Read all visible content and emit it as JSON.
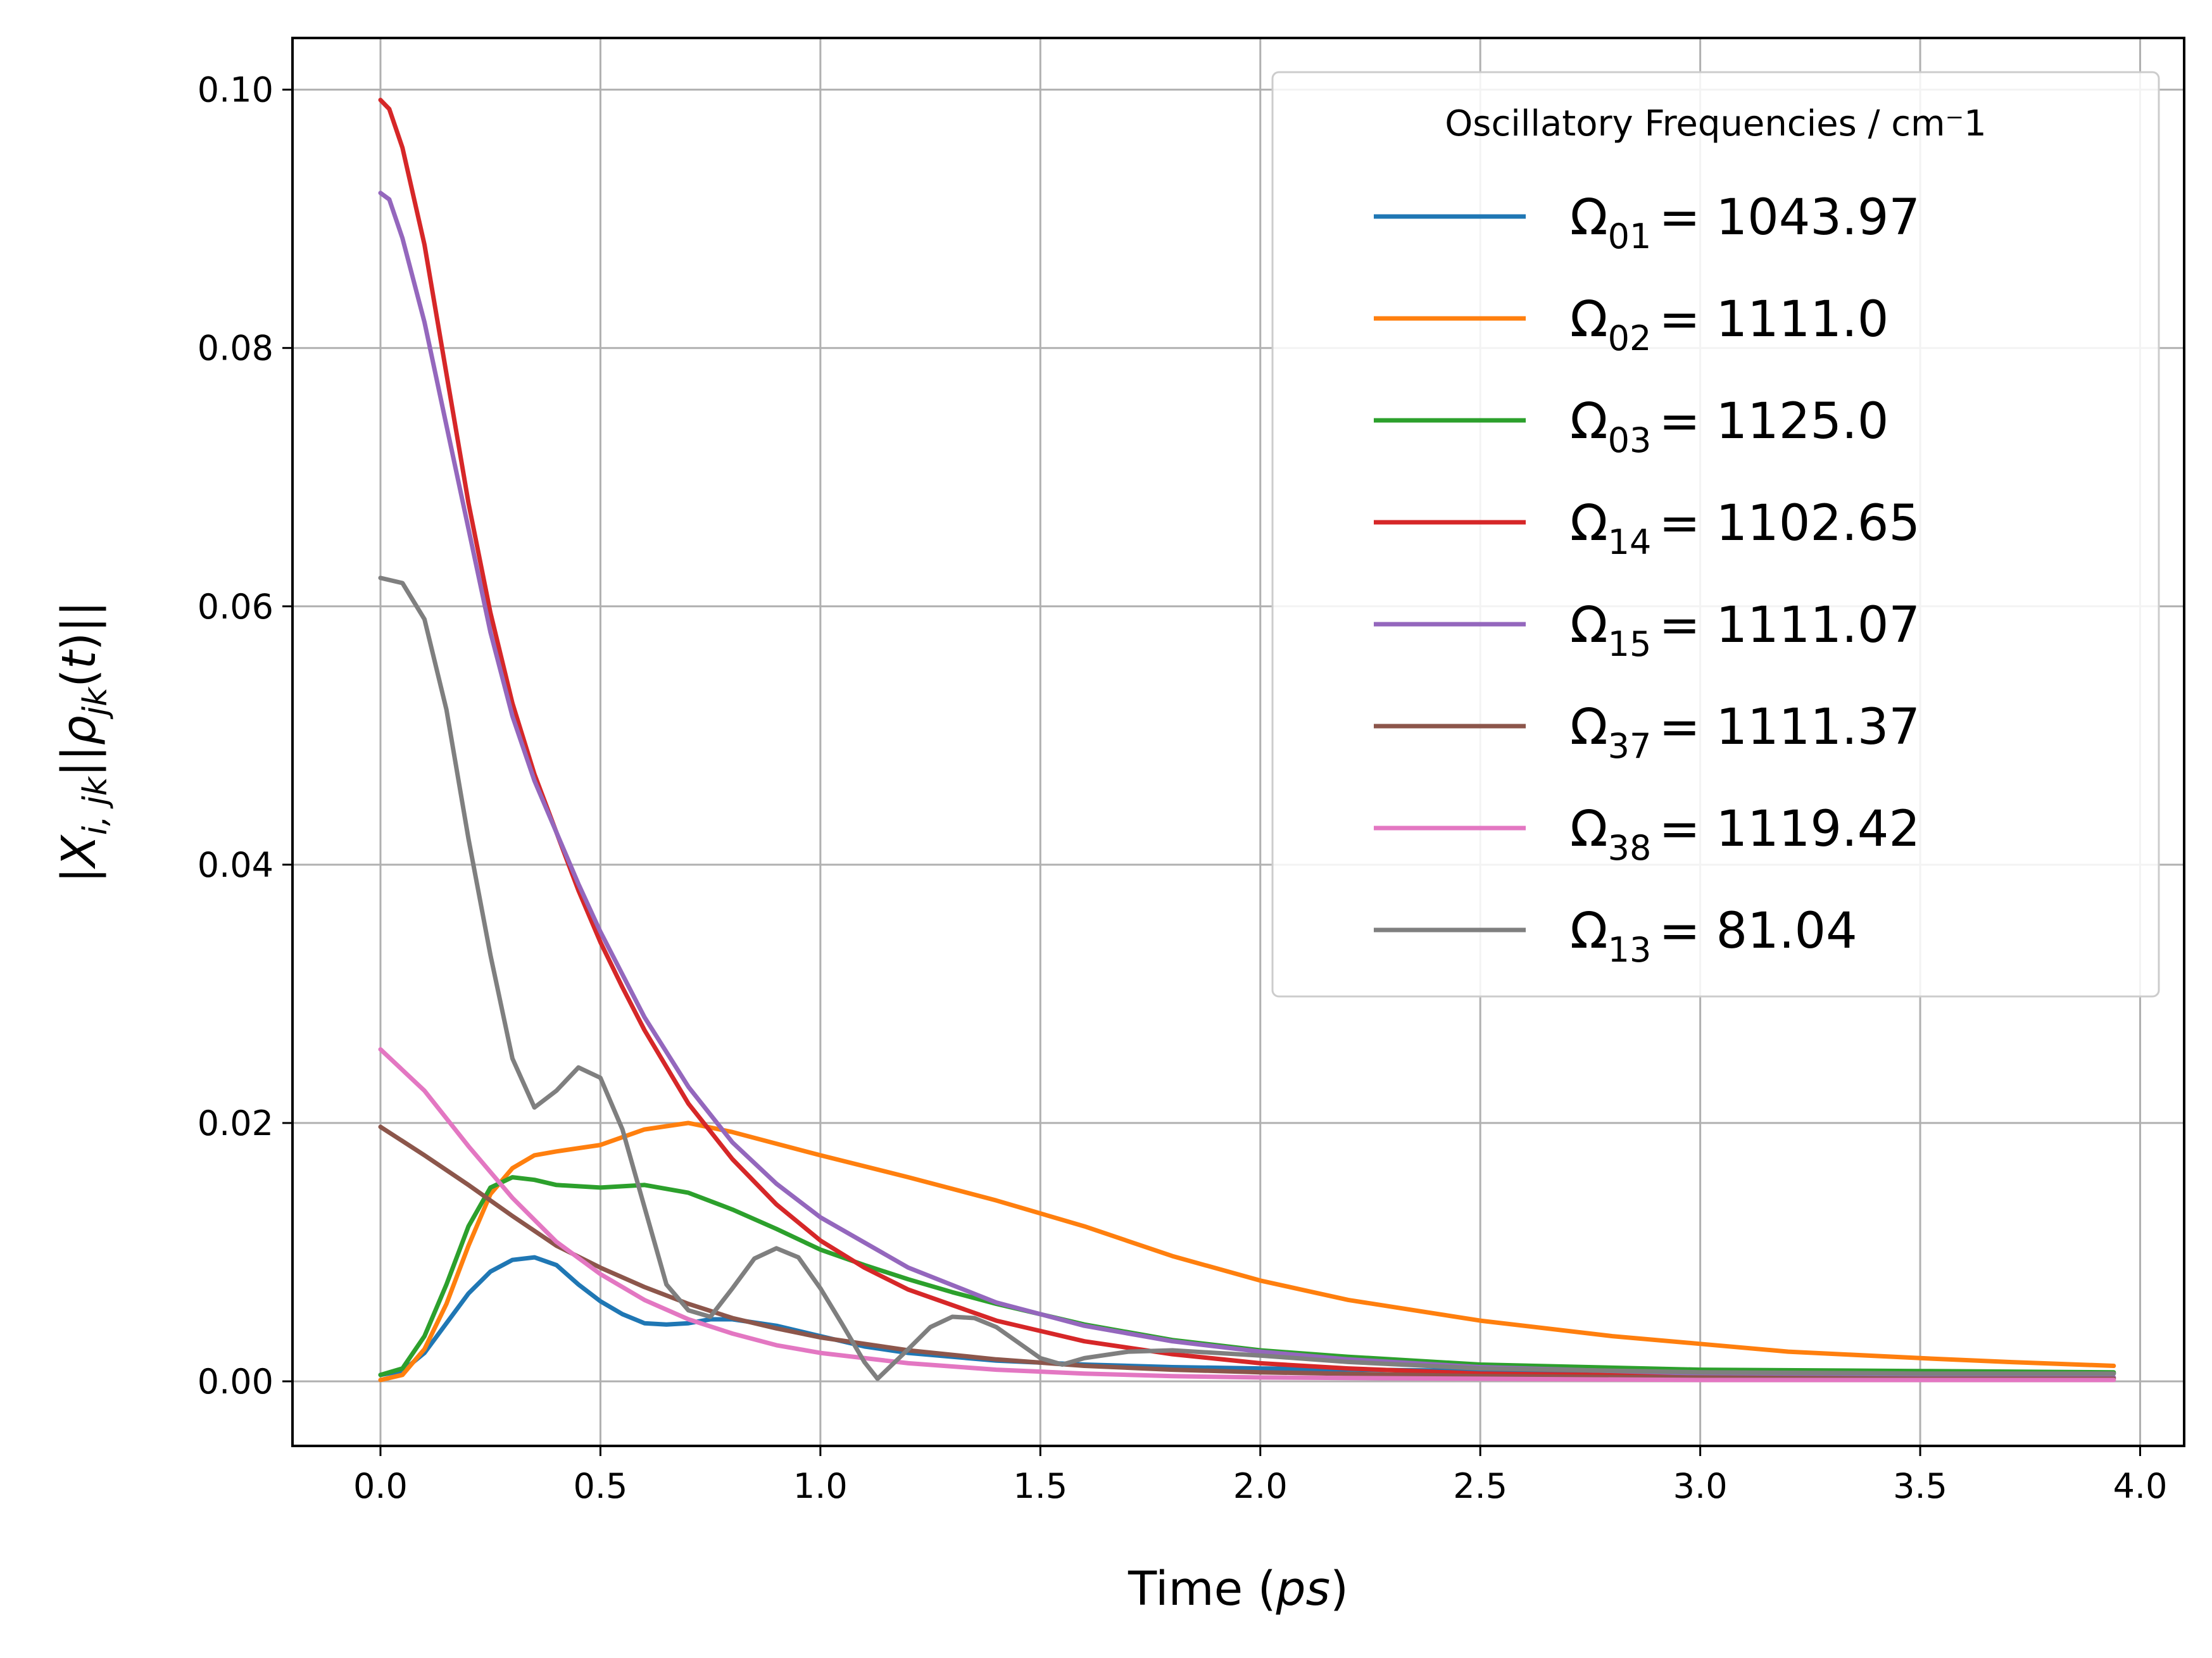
{
  "chart_data": {
    "type": "line",
    "xlabel": "Time (ps)",
    "ylabel": "|X_{i,jk}||ρ_{jk}(t)||",
    "xlim": [
      -0.2,
      4.1
    ],
    "ylim": [
      -0.005,
      0.104
    ],
    "x_ticks": [
      0.0,
      0.5,
      1.0,
      1.5,
      2.0,
      2.5,
      3.0,
      3.5,
      4.0
    ],
    "x_tick_labels": [
      "0.0",
      "0.5",
      "1.0",
      "1.5",
      "2.0",
      "2.5",
      "3.0",
      "3.5",
      "4.0"
    ],
    "y_ticks": [
      0.0,
      0.02,
      0.04,
      0.06,
      0.08,
      0.1
    ],
    "y_tick_labels": [
      "0.00",
      "0.02",
      "0.04",
      "0.06",
      "0.08",
      "0.10"
    ],
    "grid": true,
    "legend": {
      "title": "Oscillatory Frequencies / cm⁻1",
      "position": "upper right"
    },
    "series": [
      {
        "name": "Ω01 = 1043.97",
        "sub": "01",
        "value_text": "= 1043.97",
        "color": "#1f77b4",
        "x": [
          0,
          0.05,
          0.1,
          0.15,
          0.2,
          0.25,
          0.3,
          0.35,
          0.4,
          0.45,
          0.5,
          0.55,
          0.6,
          0.65,
          0.7,
          0.75,
          0.8,
          0.9,
          1.0,
          1.1,
          1.2,
          1.4,
          1.6,
          1.8,
          2.0,
          2.5,
          3.0,
          3.5,
          3.94
        ],
        "y": [
          0.0005,
          0.0008,
          0.0022,
          0.0045,
          0.0068,
          0.0085,
          0.0094,
          0.0096,
          0.009,
          0.0075,
          0.0062,
          0.0052,
          0.0045,
          0.0044,
          0.0045,
          0.0048,
          0.0048,
          0.0043,
          0.0035,
          0.0027,
          0.0022,
          0.0016,
          0.0013,
          0.0011,
          0.001,
          0.0008,
          0.0007,
          0.0007,
          0.0006
        ]
      },
      {
        "name": "Ω02 = 1111.0",
        "sub": "02",
        "value_text": "= 1111.0",
        "color": "#ff7f0e",
        "x": [
          0,
          0.05,
          0.1,
          0.15,
          0.2,
          0.25,
          0.3,
          0.35,
          0.4,
          0.5,
          0.6,
          0.7,
          0.8,
          0.9,
          1.0,
          1.2,
          1.4,
          1.6,
          1.8,
          2.0,
          2.2,
          2.5,
          2.8,
          3.0,
          3.2,
          3.5,
          3.7,
          3.94
        ],
        "y": [
          0.0001,
          0.0005,
          0.0025,
          0.006,
          0.0105,
          0.0145,
          0.0165,
          0.0175,
          0.0178,
          0.0183,
          0.0195,
          0.02,
          0.0193,
          0.0184,
          0.0175,
          0.0158,
          0.014,
          0.012,
          0.0097,
          0.0078,
          0.0063,
          0.0047,
          0.0035,
          0.0029,
          0.0023,
          0.0018,
          0.0015,
          0.0012
        ]
      },
      {
        "name": "Ω03 = 1125.0",
        "sub": "03",
        "value_text": "= 1125.0",
        "color": "#2ca02c",
        "x": [
          0,
          0.05,
          0.1,
          0.15,
          0.2,
          0.25,
          0.3,
          0.35,
          0.4,
          0.5,
          0.6,
          0.7,
          0.8,
          0.9,
          1.0,
          1.1,
          1.2,
          1.3,
          1.4,
          1.6,
          1.8,
          2.0,
          2.2,
          2.5,
          3.0,
          3.5,
          3.94
        ],
        "y": [
          0.0005,
          0.001,
          0.0035,
          0.0075,
          0.012,
          0.015,
          0.0158,
          0.0156,
          0.0152,
          0.015,
          0.0152,
          0.0146,
          0.0133,
          0.0118,
          0.0102,
          0.009,
          0.0079,
          0.0069,
          0.006,
          0.0044,
          0.0032,
          0.0024,
          0.0019,
          0.0013,
          0.0009,
          0.0008,
          0.0007
        ]
      },
      {
        "name": "Ω14 = 1102.65",
        "sub": "14",
        "value_text": "= 1102.65",
        "color": "#d62728",
        "x": [
          0,
          0.02,
          0.05,
          0.1,
          0.15,
          0.2,
          0.25,
          0.3,
          0.35,
          0.4,
          0.45,
          0.5,
          0.55,
          0.6,
          0.7,
          0.8,
          0.9,
          1.0,
          1.1,
          1.2,
          1.4,
          1.6,
          1.8,
          2.0,
          2.2,
          2.5,
          3.0,
          3.5,
          3.94
        ],
        "y": [
          0.0992,
          0.0985,
          0.0955,
          0.088,
          0.078,
          0.068,
          0.0595,
          0.0525,
          0.047,
          0.0425,
          0.038,
          0.034,
          0.0305,
          0.0272,
          0.0215,
          0.0172,
          0.0137,
          0.0109,
          0.0088,
          0.0071,
          0.0047,
          0.0031,
          0.0021,
          0.0014,
          0.001,
          0.0006,
          0.0004,
          0.0003,
          0.0003
        ]
      },
      {
        "name": "Ω15 = 1111.07",
        "sub": "15",
        "value_text": "= 1111.07",
        "color": "#9467bd",
        "x": [
          0,
          0.02,
          0.05,
          0.1,
          0.15,
          0.2,
          0.25,
          0.3,
          0.35,
          0.4,
          0.45,
          0.5,
          0.55,
          0.6,
          0.7,
          0.8,
          0.9,
          1.0,
          1.2,
          1.4,
          1.6,
          1.8,
          2.0,
          2.2,
          2.5,
          3.0,
          3.5,
          3.94
        ],
        "y": [
          0.092,
          0.0915,
          0.0885,
          0.082,
          0.074,
          0.066,
          0.058,
          0.0515,
          0.0465,
          0.0425,
          0.0385,
          0.0348,
          0.0315,
          0.0282,
          0.0228,
          0.0185,
          0.0153,
          0.0127,
          0.0088,
          0.0061,
          0.0043,
          0.0031,
          0.0023,
          0.0017,
          0.0011,
          0.0006,
          0.0004,
          0.0003
        ]
      },
      {
        "name": "Ω37 = 1111.37",
        "sub": "37",
        "value_text": "= 1111.37",
        "color": "#8c564b",
        "x": [
          0,
          0.1,
          0.2,
          0.3,
          0.4,
          0.5,
          0.6,
          0.7,
          0.8,
          0.9,
          1.0,
          1.2,
          1.4,
          1.6,
          1.8,
          2.0,
          2.5,
          3.0,
          3.5,
          3.94
        ],
        "y": [
          0.0197,
          0.0175,
          0.0152,
          0.0128,
          0.0105,
          0.0088,
          0.0073,
          0.006,
          0.0049,
          0.0041,
          0.0034,
          0.0024,
          0.0017,
          0.0012,
          0.0009,
          0.0007,
          0.0004,
          0.0003,
          0.0002,
          0.0002
        ]
      },
      {
        "name": "Ω38 = 1119.42",
        "sub": "38",
        "value_text": "= 1119.42",
        "color": "#e377c2",
        "x": [
          0,
          0.1,
          0.2,
          0.3,
          0.4,
          0.5,
          0.6,
          0.7,
          0.8,
          0.9,
          1.0,
          1.2,
          1.4,
          1.6,
          1.8,
          2.0,
          2.5,
          3.0,
          3.5,
          3.94
        ],
        "y": [
          0.0257,
          0.0225,
          0.0182,
          0.0142,
          0.0108,
          0.0083,
          0.0063,
          0.0048,
          0.0037,
          0.0028,
          0.0022,
          0.0014,
          0.0009,
          0.0006,
          0.0004,
          0.0003,
          0.0002,
          0.0001,
          0.0001,
          0.0001
        ]
      },
      {
        "name": "Ω13 = 81.04",
        "sub": "13",
        "value_text": "= 81.04",
        "color": "#7f7f7f",
        "x": [
          0,
          0.05,
          0.1,
          0.15,
          0.2,
          0.25,
          0.3,
          0.35,
          0.4,
          0.45,
          0.5,
          0.55,
          0.6,
          0.65,
          0.7,
          0.75,
          0.8,
          0.85,
          0.9,
          0.95,
          1.0,
          1.05,
          1.1,
          1.13,
          1.2,
          1.25,
          1.3,
          1.35,
          1.4,
          1.45,
          1.5,
          1.55,
          1.6,
          1.7,
          1.8,
          2.0,
          2.2,
          2.5,
          3.0,
          3.5,
          3.94
        ],
        "y": [
          0.0622,
          0.0618,
          0.059,
          0.052,
          0.042,
          0.033,
          0.025,
          0.0212,
          0.0225,
          0.0243,
          0.0235,
          0.0195,
          0.0135,
          0.0075,
          0.0055,
          0.005,
          0.0072,
          0.0095,
          0.0103,
          0.0096,
          0.0072,
          0.0044,
          0.0015,
          0.0002,
          0.0025,
          0.0042,
          0.005,
          0.0049,
          0.0042,
          0.003,
          0.0018,
          0.0013,
          0.0018,
          0.0023,
          0.0024,
          0.002,
          0.0015,
          0.001,
          0.0007,
          0.0006,
          0.0006
        ]
      }
    ]
  }
}
